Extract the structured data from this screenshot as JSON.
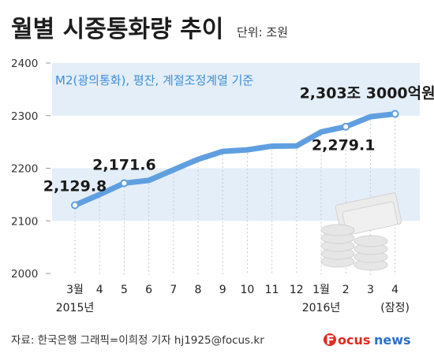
{
  "header": {
    "title": "월별 시중통화량 추이",
    "unit": "단위: 조원"
  },
  "footer": {
    "source": "자료: 한국은행   그래픽=이희정 기자 hj1925@focus.kr",
    "brand_mark": "F",
    "brand_word": "ocus",
    "brand_suffix": "news"
  },
  "colors": {
    "line": "#5f9fe0",
    "band": "#e4eef8",
    "subtitle": "#3b8fd8",
    "brand_red": "#e02a1f",
    "brand_blue": "#2a6fc9",
    "grid": "#c9c9c9"
  },
  "chart_data": {
    "type": "line",
    "subtitle": "M2(광의통화), 평잔, 계절조정계열 기준",
    "categories": [
      "3월",
      "4",
      "5",
      "6",
      "7",
      "8",
      "9",
      "10",
      "11",
      "12",
      "1월",
      "2",
      "3",
      "4"
    ],
    "category_sublabels": [
      "2015년",
      "",
      "",
      "",
      "",
      "",
      "",
      "",
      "",
      "",
      "2016년",
      "",
      "",
      "(잠정)"
    ],
    "series": [
      {
        "values": [
          2129.8,
          2150.0,
          2171.6,
          2177.0,
          2197.0,
          2217.0,
          2232.0,
          2235.0,
          2242.0,
          2242.5,
          2269.0,
          2279.1,
          2298.0,
          2303.3
        ]
      }
    ],
    "marked_points": [
      0,
      2,
      11,
      13
    ],
    "data_labels": [
      {
        "index": 0,
        "text": "2,129.8"
      },
      {
        "index": 2,
        "text": "2,171.6"
      },
      {
        "index": 11,
        "text": "2,279.1"
      },
      {
        "index": 13,
        "text": "2,303조 3000억원"
      }
    ],
    "ylim": [
      2000,
      2400
    ],
    "yticks": [
      2000,
      2100,
      2200,
      2300,
      2400
    ],
    "ytick_labels": [
      "2000",
      "2100",
      "2200",
      "2300",
      "2400"
    ],
    "grid": "dashed vertical lines at each month"
  }
}
